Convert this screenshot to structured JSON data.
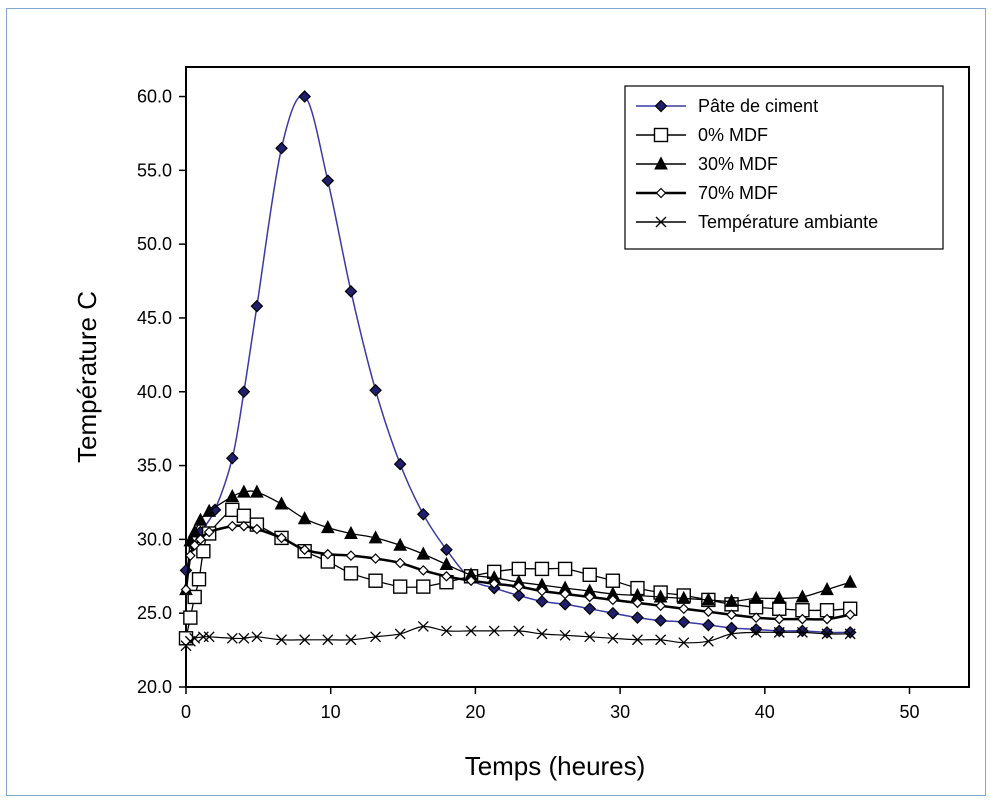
{
  "chart_data": {
    "type": "line",
    "title": "",
    "xlabel": "Temps (heures)",
    "ylabel": "Température C",
    "xlim": [
      0,
      55
    ],
    "ylim": [
      20.0,
      62.0
    ],
    "xticks": [
      "0",
      "10",
      "20",
      "30",
      "40",
      "50"
    ],
    "yticks": [
      "20.0",
      "25.0",
      "30.0",
      "35.0",
      "40.0",
      "45.0",
      "50.0",
      "55.0",
      "60.0"
    ],
    "legend_position": "top-right",
    "grid": false,
    "series": [
      {
        "name": "Pâte de ciment",
        "marker": "filled-diamond",
        "color": "#1f1f6e",
        "x": [
          0,
          0.5,
          1.0,
          2.0,
          3.2,
          4.0,
          4.9,
          6.6,
          8.2,
          9.8,
          11.4,
          13.1,
          14.8,
          16.4,
          18.0,
          19.7,
          21.3,
          23.0,
          24.6,
          26.2,
          27.9,
          29.5,
          31.2,
          32.8,
          34.4,
          36.1,
          37.7,
          39.4,
          41.0,
          42.6,
          44.3,
          45.9
        ],
        "y": [
          27.9,
          29.6,
          30.5,
          32.0,
          35.5,
          40.0,
          45.8,
          56.5,
          60.0,
          54.3,
          46.8,
          40.1,
          35.1,
          31.7,
          29.3,
          27.3,
          26.7,
          26.2,
          25.8,
          25.6,
          25.3,
          25.0,
          24.7,
          24.5,
          24.4,
          24.2,
          24.0,
          23.9,
          23.8,
          23.8,
          23.7,
          23.7
        ]
      },
      {
        "name": "0% MDF",
        "marker": "open-square",
        "color": "#000000",
        "x": [
          0,
          0.3,
          0.6,
          0.9,
          1.2,
          1.6,
          3.2,
          4.0,
          4.9,
          6.6,
          8.2,
          9.8,
          11.4,
          13.1,
          14.8,
          16.4,
          18.0,
          19.7,
          21.3,
          23.0,
          24.6,
          26.2,
          27.9,
          29.5,
          31.2,
          32.8,
          34.4,
          36.1,
          37.7,
          39.4,
          41.0,
          42.6,
          44.3,
          45.9
        ],
        "y": [
          23.3,
          24.7,
          26.1,
          27.3,
          29.2,
          30.4,
          32.0,
          31.6,
          31.0,
          30.1,
          29.2,
          28.5,
          27.7,
          27.2,
          26.8,
          26.8,
          27.1,
          27.5,
          27.8,
          28.0,
          28.0,
          28.0,
          27.6,
          27.2,
          26.7,
          26.4,
          26.2,
          25.9,
          25.6,
          25.4,
          25.3,
          25.2,
          25.2,
          25.3
        ]
      },
      {
        "name": "30% MDF",
        "marker": "filled-triangle",
        "color": "#000000",
        "x": [
          0,
          0.3,
          0.6,
          1.0,
          1.6,
          3.2,
          4.0,
          4.9,
          6.6,
          8.2,
          9.8,
          11.4,
          13.1,
          14.8,
          16.4,
          18.0,
          19.7,
          21.3,
          23.0,
          24.6,
          26.2,
          27.9,
          29.5,
          31.2,
          32.8,
          34.4,
          36.1,
          37.7,
          39.4,
          41.0,
          42.6,
          44.3,
          45.9
        ],
        "y": [
          26.6,
          29.9,
          30.5,
          31.3,
          31.9,
          32.9,
          33.2,
          33.2,
          32.4,
          31.4,
          30.8,
          30.4,
          30.1,
          29.6,
          29.0,
          28.3,
          27.6,
          27.4,
          27.1,
          26.9,
          26.7,
          26.5,
          26.3,
          26.2,
          26.1,
          26.0,
          25.9,
          25.8,
          26.0,
          26.0,
          26.1,
          26.6,
          27.1
        ]
      },
      {
        "name": "70% MDF",
        "marker": "open-diamond",
        "color": "#000000",
        "x": [
          0,
          0.3,
          0.6,
          1.0,
          1.6,
          3.2,
          4.0,
          4.9,
          6.6,
          8.2,
          9.8,
          11.4,
          13.1,
          14.8,
          16.4,
          18.0,
          19.7,
          21.3,
          23.0,
          24.6,
          26.2,
          27.9,
          29.5,
          31.2,
          32.8,
          34.4,
          36.1,
          37.7,
          39.4,
          41.0,
          42.6,
          44.3,
          45.9
        ],
        "y": [
          26.6,
          28.9,
          29.6,
          30.0,
          30.5,
          30.9,
          30.9,
          30.7,
          30.1,
          29.3,
          29.0,
          28.9,
          28.7,
          28.4,
          27.9,
          27.5,
          27.2,
          27.0,
          26.8,
          26.5,
          26.3,
          26.1,
          25.9,
          25.7,
          25.5,
          25.3,
          25.1,
          24.9,
          24.7,
          24.6,
          24.6,
          24.6,
          24.9
        ]
      },
      {
        "name": "Température ambiante",
        "marker": "cross",
        "color": "#000000",
        "x": [
          0,
          0.3,
          0.6,
          1.2,
          1.6,
          3.2,
          4.0,
          4.9,
          6.6,
          8.2,
          9.8,
          11.4,
          13.1,
          14.8,
          16.4,
          18.0,
          19.7,
          21.3,
          23.0,
          24.6,
          26.2,
          27.9,
          29.5,
          31.2,
          32.8,
          34.4,
          36.1,
          37.7,
          39.4,
          41.0,
          42.6,
          44.3,
          45.9
        ],
        "y": [
          22.8,
          23.1,
          23.3,
          23.4,
          23.4,
          23.3,
          23.3,
          23.4,
          23.2,
          23.2,
          23.2,
          23.2,
          23.4,
          23.6,
          24.1,
          23.8,
          23.8,
          23.8,
          23.8,
          23.6,
          23.5,
          23.4,
          23.3,
          23.2,
          23.2,
          23.0,
          23.1,
          23.6,
          23.7,
          23.7,
          23.7,
          23.6,
          23.6
        ]
      }
    ]
  }
}
